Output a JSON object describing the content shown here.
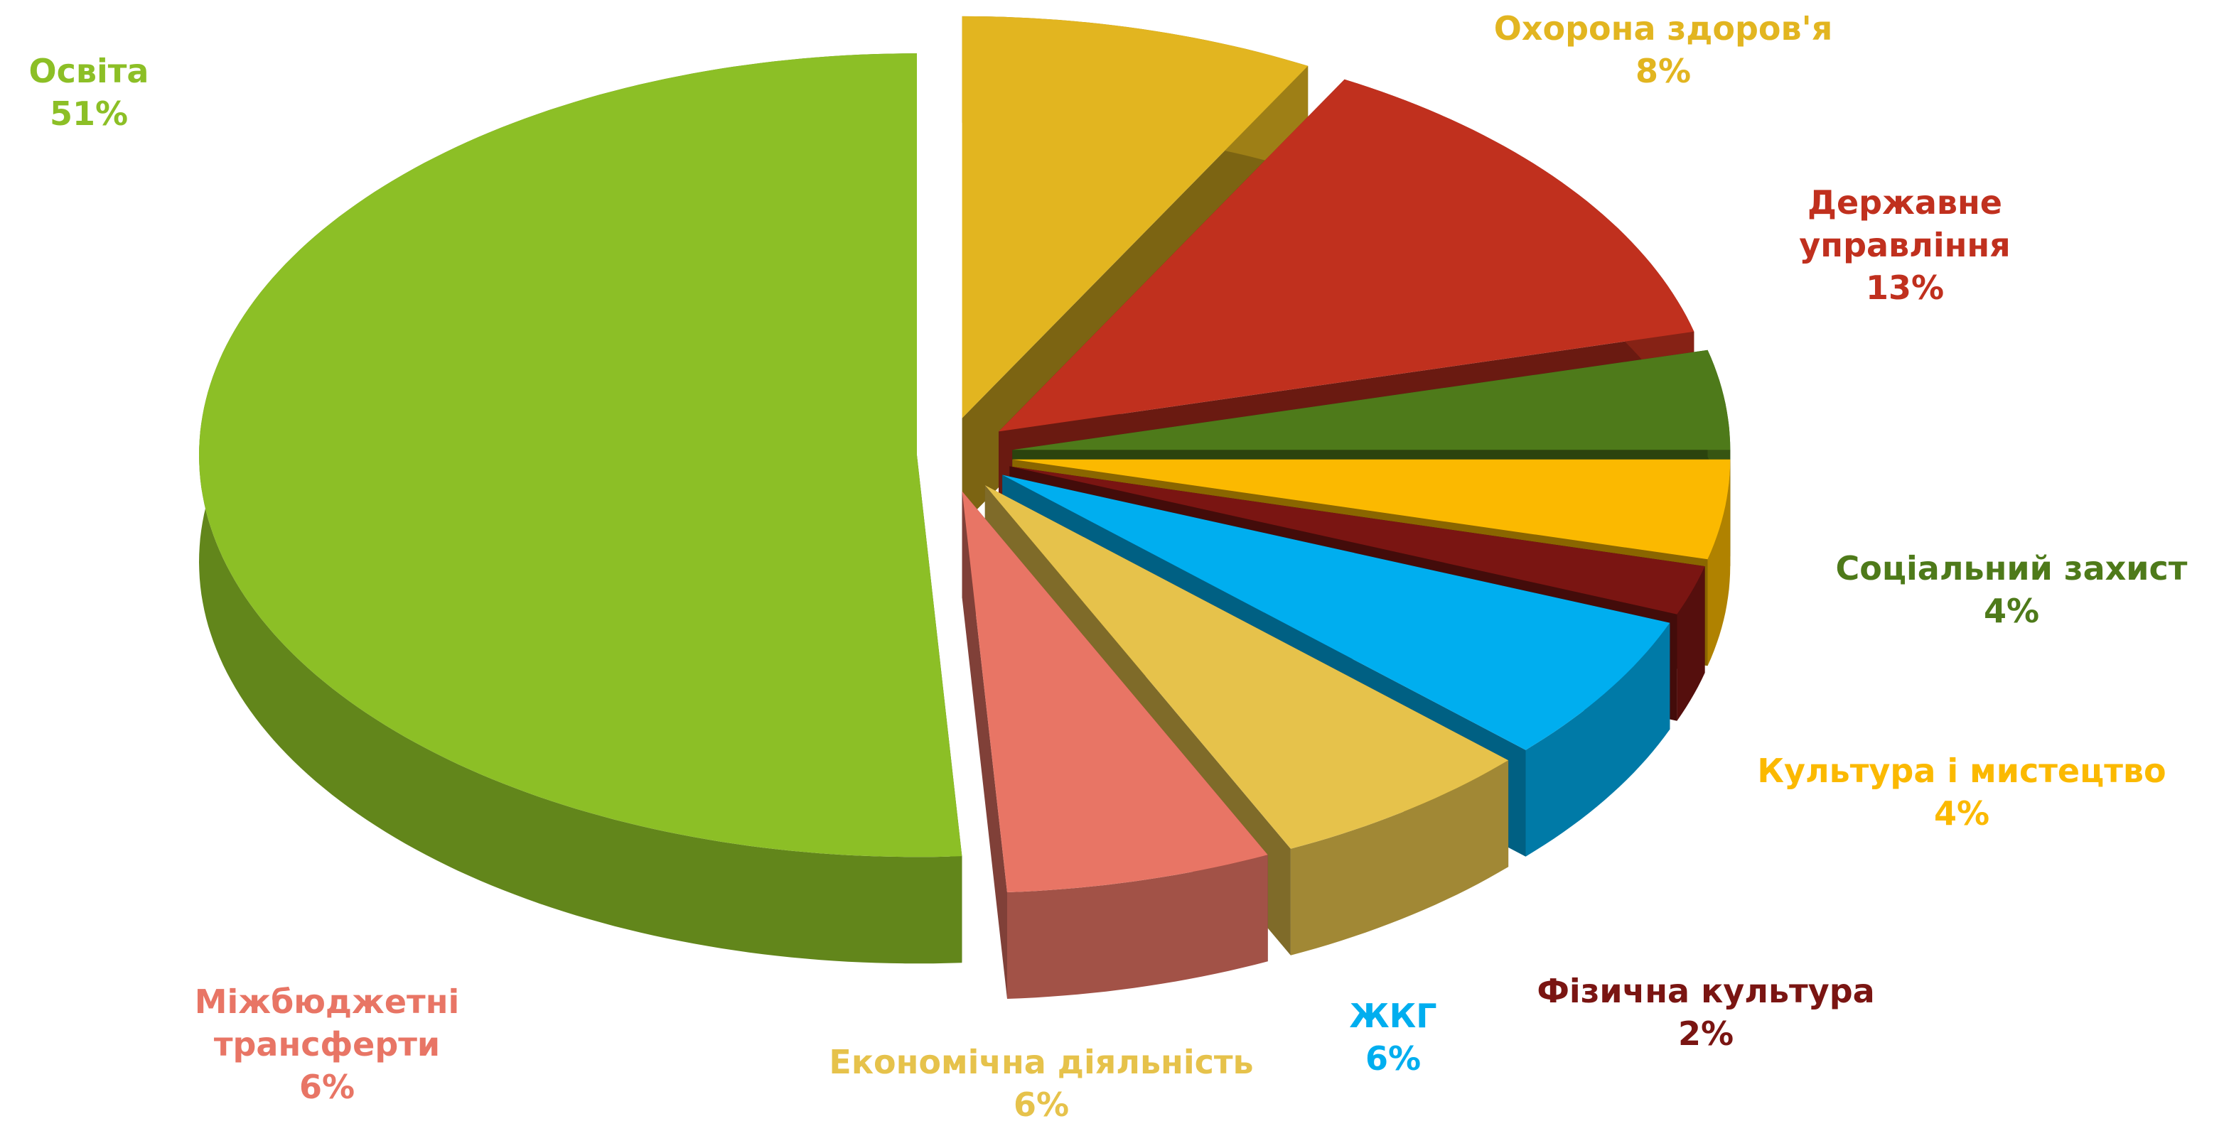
{
  "chart_data": {
    "type": "pie",
    "categories": [
      "Освіта",
      "Охорона здоров'я",
      "Державне управління",
      "Соціальний захист",
      "Культура і мистецтво",
      "Фізична культура",
      "ЖКГ",
      "Економічна діяльність",
      "Міжбюджетні трансферти"
    ],
    "values": [
      51,
      8,
      13,
      4,
      4,
      2,
      6,
      6,
      6
    ],
    "value_labels": [
      "51%",
      "8%",
      "13%",
      "4%",
      "4%",
      "2%",
      "6%",
      "6%",
      "6%"
    ],
    "colors": [
      "#8cbf26",
      "#e2b520",
      "#c0301e",
      "#4e7a1a",
      "#fbb900",
      "#7a1512",
      "#00aeef",
      "#e6c24b",
      "#e87565"
    ]
  }
}
